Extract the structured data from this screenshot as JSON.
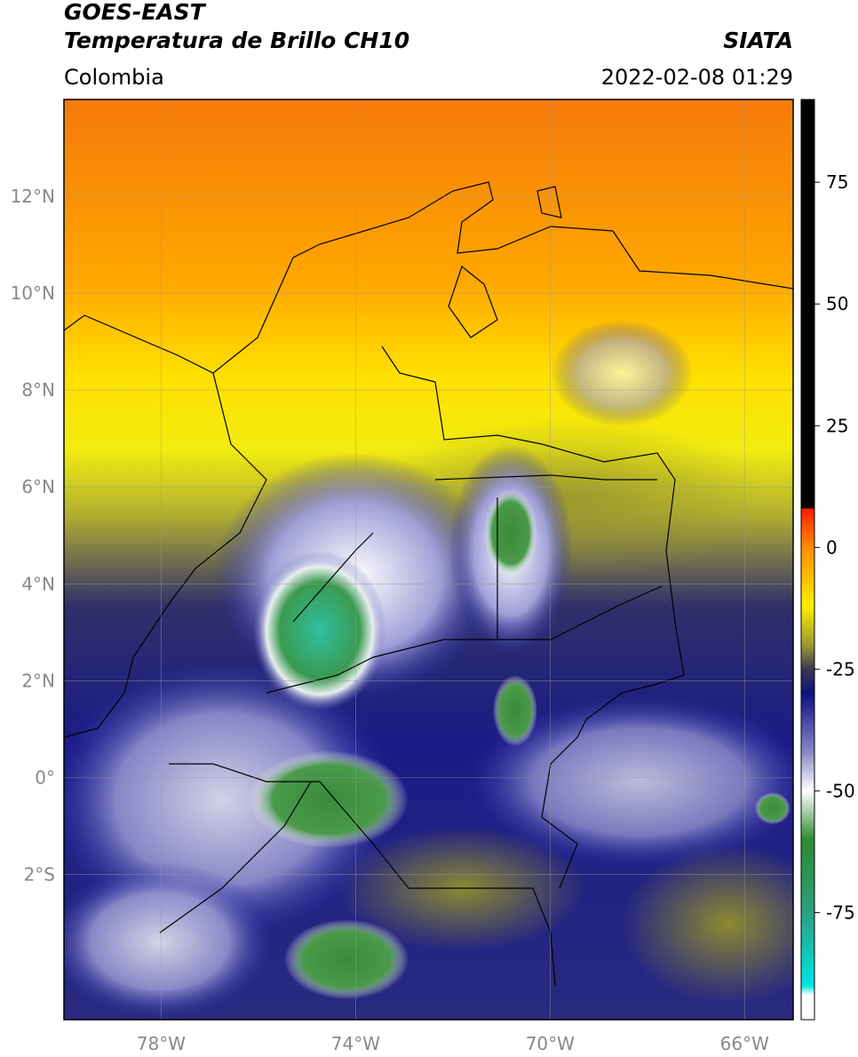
{
  "header": {
    "title": "GOES-EAST",
    "subtitle": "Temperatura de Brillo CH10",
    "source": "SIATA",
    "region": "Colombia",
    "datetime": "2022-02-08 01:29"
  },
  "map": {
    "lon_range": [
      -80,
      -65
    ],
    "lat_range": [
      -5,
      14
    ],
    "grid": true,
    "lat_ticks": [
      {
        "value": 12,
        "label": "12°N"
      },
      {
        "value": 10,
        "label": "10°N"
      },
      {
        "value": 8,
        "label": "8°N"
      },
      {
        "value": 6,
        "label": "6°N"
      },
      {
        "value": 4,
        "label": "4°N"
      },
      {
        "value": 2,
        "label": "2°N"
      },
      {
        "value": 0,
        "label": "0°"
      },
      {
        "value": -2,
        "label": "2°S"
      }
    ],
    "lon_ticks": [
      {
        "value": -78,
        "label": "78°W"
      },
      {
        "value": -74,
        "label": "74°W"
      },
      {
        "value": -70,
        "label": "70°W"
      },
      {
        "value": -66,
        "label": "66°W"
      }
    ]
  },
  "colorbar": {
    "range": [
      -97,
      92
    ],
    "ticks": [
      75,
      50,
      25,
      0,
      -25,
      -50,
      -75
    ],
    "stops": [
      {
        "value": 92,
        "color": "#000000"
      },
      {
        "value": 8,
        "color": "#000000"
      },
      {
        "value": 8,
        "color": "#ff1a00"
      },
      {
        "value": 0,
        "color": "#ff8c00"
      },
      {
        "value": -12,
        "color": "#ffee00"
      },
      {
        "value": -20,
        "color": "#9a9a30"
      },
      {
        "value": -25,
        "color": "#3a3a50"
      },
      {
        "value": -30,
        "color": "#101080"
      },
      {
        "value": -42,
        "color": "#8888c8"
      },
      {
        "value": -50,
        "color": "#ffffff"
      },
      {
        "value": -60,
        "color": "#2e8b2e"
      },
      {
        "value": -75,
        "color": "#2aa080"
      },
      {
        "value": -90,
        "color": "#00e5e5"
      },
      {
        "value": -92,
        "color": "#ffffff"
      },
      {
        "value": -97,
        "color": "#ffffff"
      }
    ]
  }
}
